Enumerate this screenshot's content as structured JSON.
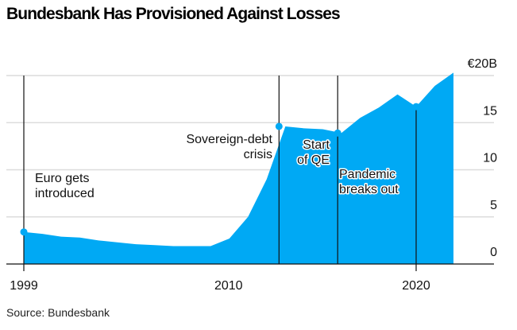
{
  "chart_data": {
    "type": "area",
    "title": "Bundesbank Has Provisioned Against Losses",
    "source": "Source: Bundesbank",
    "unit_label": "€20B",
    "x": [
      1999,
      2000,
      2001,
      2002,
      2003,
      2004,
      2005,
      2006,
      2007,
      2008,
      2009,
      2010,
      2011,
      2012,
      2013,
      2014,
      2015,
      2016,
      2017,
      2018,
      2019,
      2020,
      2021,
      2022
    ],
    "values": [
      3.4,
      3.2,
      2.9,
      2.8,
      2.5,
      2.3,
      2.1,
      2.0,
      1.9,
      1.9,
      1.9,
      2.7,
      5.0,
      9.0,
      14.6,
      14.4,
      14.3,
      13.9,
      15.5,
      16.6,
      18.0,
      16.7,
      18.9,
      20.3
    ],
    "xlim": [
      1999,
      2022
    ],
    "ylim": [
      0,
      20
    ],
    "x_ticks": [
      "1999",
      "2010",
      "2020"
    ],
    "y_ticks": [
      "0",
      "5",
      "10",
      "15",
      "€20B"
    ],
    "y_tick_values": [
      0,
      5,
      10,
      15,
      20
    ],
    "grid": true,
    "color": "#00A9F4",
    "annotations": [
      {
        "x": 1999,
        "y": 3.4,
        "lines": [
          "Euro gets",
          "introduced"
        ]
      },
      {
        "x": 2012.66,
        "y": 14.6,
        "lines": [
          "Sovereign-debt",
          "crisis"
        ]
      },
      {
        "x": 2015.8,
        "y": 13.9,
        "lines": [
          "Start",
          "of QE"
        ]
      },
      {
        "x": 2020,
        "y": 16.7,
        "lines": [
          "Pandemic",
          "breaks out"
        ]
      }
    ]
  }
}
